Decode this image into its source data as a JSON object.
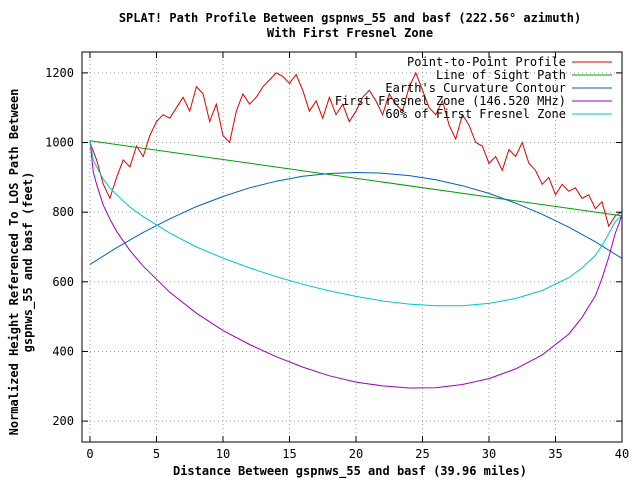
{
  "chart_data": {
    "type": "line",
    "title": "SPLAT! Path Profile Between gspnws_55 and basf (222.56° azimuth)",
    "subtitle": "With First Fresnel Zone",
    "xlabel": "Distance Between gspnws_55 and basf (39.96 miles)",
    "ylabel_line1": "Normalized Height Referenced To LOS Path Between",
    "ylabel_line2": "gspnws_55 and basf (feet)",
    "xlim": [
      -0.6,
      40
    ],
    "ylim": [
      140,
      1260
    ],
    "xticks": [
      0,
      5,
      10,
      15,
      20,
      25,
      30,
      35,
      40
    ],
    "yticks": [
      200,
      400,
      600,
      800,
      1000,
      1200
    ],
    "xtick_labels": [
      "0",
      "5",
      "10",
      "15",
      "20",
      "25",
      "30",
      "35",
      "40"
    ],
    "ytick_labels": [
      "200",
      "400",
      "600",
      "800",
      "1000",
      "1200"
    ],
    "grid": true,
    "legend_position": "top-right",
    "series": [
      {
        "name": "Point-to-Point Profile",
        "color": "#e00000",
        "x": [
          0,
          0.5,
          1,
          1.5,
          2,
          2.5,
          3,
          3.5,
          4,
          4.5,
          5,
          5.5,
          6,
          6.5,
          7,
          7.5,
          8,
          8.5,
          9,
          9.5,
          10,
          10.5,
          11,
          11.5,
          12,
          12.5,
          13,
          13.5,
          14,
          14.5,
          15,
          15.5,
          16,
          16.5,
          17,
          17.5,
          18,
          18.5,
          19,
          19.5,
          20,
          20.5,
          21,
          21.5,
          22,
          22.5,
          23,
          23.5,
          24,
          24.5,
          25,
          25.5,
          26,
          26.5,
          27,
          27.5,
          28,
          28.5,
          29,
          29.5,
          30,
          30.5,
          31,
          31.5,
          32,
          32.5,
          33,
          33.5,
          34,
          34.5,
          35,
          35.5,
          36,
          36.5,
          37,
          37.5,
          38,
          38.5,
          39,
          39.5,
          39.96
        ],
        "y": [
          1000,
          950,
          880,
          840,
          900,
          950,
          930,
          990,
          960,
          1020,
          1060,
          1080,
          1070,
          1100,
          1130,
          1090,
          1160,
          1140,
          1060,
          1110,
          1020,
          1000,
          1090,
          1140,
          1110,
          1130,
          1160,
          1180,
          1200,
          1190,
          1170,
          1195,
          1150,
          1090,
          1120,
          1070,
          1130,
          1080,
          1110,
          1060,
          1090,
          1130,
          1150,
          1120,
          1080,
          1140,
          1110,
          1090,
          1160,
          1200,
          1150,
          1100,
          1080,
          1120,
          1050,
          1010,
          1080,
          1050,
          1000,
          990,
          940,
          960,
          920,
          980,
          960,
          1000,
          940,
          920,
          880,
          900,
          850,
          880,
          860,
          870,
          840,
          850,
          810,
          830,
          760,
          790,
          800
        ]
      },
      {
        "name": "Line of Sight Path",
        "color": "#00a000",
        "x": [
          0,
          39.96
        ],
        "y": [
          1005,
          790
        ]
      },
      {
        "name": "Earth's Curvature Contour",
        "color": "#0060c0",
        "x": [
          0,
          2,
          4,
          6,
          8,
          10,
          12,
          14,
          16,
          18,
          20,
          22,
          24,
          26,
          28,
          30,
          32,
          34,
          36,
          38,
          39.96
        ],
        "y": [
          650,
          698,
          742,
          781,
          816,
          845,
          870,
          889,
          903,
          911,
          914,
          912,
          905,
          893,
          876,
          854,
          826,
          794,
          757,
          715,
          668
        ]
      },
      {
        "name": "First Fresnel Zone (146.520 MHz)",
        "color": "#a000c0",
        "x": [
          0,
          0.25,
          0.5,
          1,
          1.5,
          2,
          3,
          4,
          6,
          8,
          10,
          12,
          14,
          16,
          18,
          20,
          22,
          24,
          26,
          28,
          30,
          32,
          34,
          36,
          37,
          38,
          38.5,
          39,
          39.5,
          39.75,
          39.96
        ],
        "y": [
          1005,
          915,
          880,
          820,
          780,
          745,
          690,
          645,
          570,
          510,
          460,
          420,
          385,
          355,
          330,
          312,
          301,
          295,
          296,
          305,
          322,
          350,
          390,
          450,
          498,
          560,
          610,
          670,
          740,
          765,
          790
        ]
      },
      {
        "name": "60% of First Fresnel Zone",
        "color": "#00c8c8",
        "x": [
          0,
          0.25,
          0.5,
          1,
          1.5,
          2,
          3,
          4,
          6,
          8,
          10,
          12,
          14,
          16,
          18,
          20,
          22,
          24,
          26,
          28,
          30,
          32,
          34,
          36,
          37,
          38,
          38.5,
          39,
          39.5,
          39.75,
          39.96
        ],
        "y": [
          1005,
          950,
          930,
          895,
          870,
          850,
          815,
          787,
          740,
          700,
          668,
          640,
          615,
          593,
          574,
          558,
          545,
          536,
          531,
          531,
          538,
          552,
          575,
          612,
          640,
          676,
          704,
          738,
          773,
          782,
          790
        ]
      }
    ]
  }
}
